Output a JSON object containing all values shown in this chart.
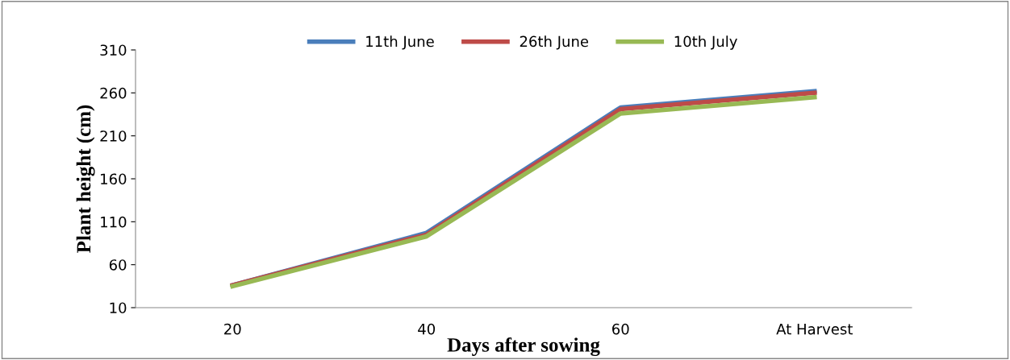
{
  "chart_data": {
    "type": "line",
    "xlabel": "Days after sowing",
    "ylabel": "Plant height (cm)",
    "categories": [
      "20",
      "40",
      "60",
      "At Harvest"
    ],
    "series": [
      {
        "name": "11th June",
        "color": "#4a7ebb",
        "values": [
          36,
          97,
          243,
          262
        ]
      },
      {
        "name": "26th June",
        "color": "#be4b48",
        "values": [
          36,
          95,
          241,
          260
        ]
      },
      {
        "name": "10th July",
        "color": "#98b954",
        "values": [
          35,
          93,
          236,
          255
        ]
      }
    ],
    "ylim": [
      10,
      310
    ],
    "yticks": [
      10,
      60,
      110,
      160,
      210,
      260,
      310
    ],
    "grid": false,
    "legend": "top",
    "marker": "none",
    "line_style": "solid"
  }
}
